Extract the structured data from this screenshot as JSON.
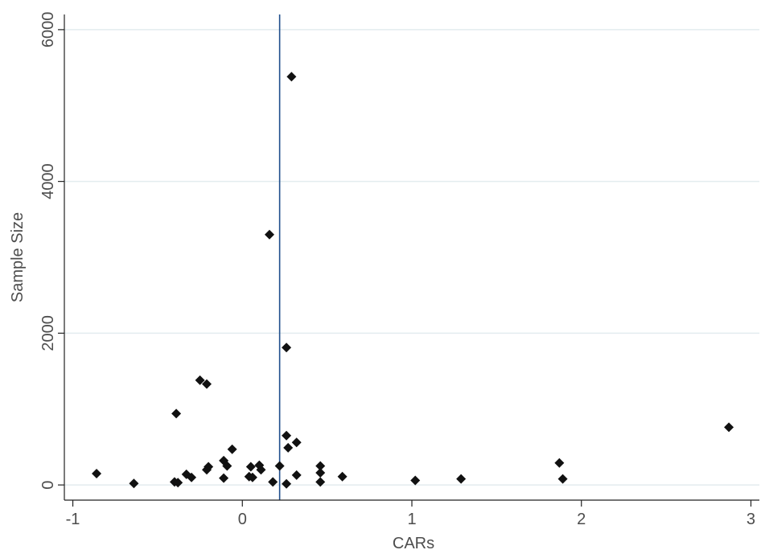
{
  "chart_data": {
    "type": "scatter",
    "title": "",
    "xlabel": "CARs",
    "ylabel": "Sample Size",
    "xlim": [
      -1.05,
      3.05
    ],
    "ylim": [
      -200,
      6200
    ],
    "x_ticks": [
      -1,
      0,
      1,
      2,
      3
    ],
    "x_tick_labels": [
      "-1",
      "0",
      "1",
      "2",
      "3"
    ],
    "y_ticks": [
      0,
      2000,
      4000,
      6000
    ],
    "y_tick_labels": [
      "0",
      "2000",
      "4000",
      "6000"
    ],
    "grid": "horizontal",
    "legend": "none",
    "reference_line_x": 0.22,
    "colors": {
      "marker": "#111111",
      "reference_line": "#1f4e8c",
      "grid": "#e3ecef",
      "axis": "#222222",
      "text": "#4d4d4d"
    },
    "series": [
      {
        "marker": "diamond",
        "points": [
          {
            "x": 0.29,
            "y": 5380
          },
          {
            "x": 0.16,
            "y": 3300
          },
          {
            "x": 0.26,
            "y": 1810
          },
          {
            "x": -0.25,
            "y": 1380
          },
          {
            "x": -0.21,
            "y": 1330
          },
          {
            "x": -0.39,
            "y": 940
          },
          {
            "x": 2.87,
            "y": 760
          },
          {
            "x": 0.26,
            "y": 650
          },
          {
            "x": 0.32,
            "y": 560
          },
          {
            "x": 0.27,
            "y": 490
          },
          {
            "x": -0.06,
            "y": 470
          },
          {
            "x": 1.87,
            "y": 290
          },
          {
            "x": -0.11,
            "y": 320
          },
          {
            "x": -0.09,
            "y": 250
          },
          {
            "x": 0.1,
            "y": 260
          },
          {
            "x": 0.05,
            "y": 240
          },
          {
            "x": 0.22,
            "y": 250
          },
          {
            "x": 0.46,
            "y": 250
          },
          {
            "x": -0.2,
            "y": 240
          },
          {
            "x": -0.21,
            "y": 200
          },
          {
            "x": 0.11,
            "y": 200
          },
          {
            "x": -0.86,
            "y": 150
          },
          {
            "x": -0.33,
            "y": 140
          },
          {
            "x": 0.46,
            "y": 160
          },
          {
            "x": 0.32,
            "y": 130
          },
          {
            "x": 0.59,
            "y": 110
          },
          {
            "x": 0.04,
            "y": 110
          },
          {
            "x": 0.06,
            "y": 100
          },
          {
            "x": -0.3,
            "y": 100
          },
          {
            "x": -0.11,
            "y": 90
          },
          {
            "x": 1.29,
            "y": 80
          },
          {
            "x": 1.89,
            "y": 80
          },
          {
            "x": 1.02,
            "y": 60
          },
          {
            "x": 0.18,
            "y": 40
          },
          {
            "x": -0.4,
            "y": 40
          },
          {
            "x": -0.38,
            "y": 30
          },
          {
            "x": 0.46,
            "y": 40
          },
          {
            "x": -0.64,
            "y": 20
          },
          {
            "x": 0.26,
            "y": 15
          }
        ]
      }
    ]
  }
}
